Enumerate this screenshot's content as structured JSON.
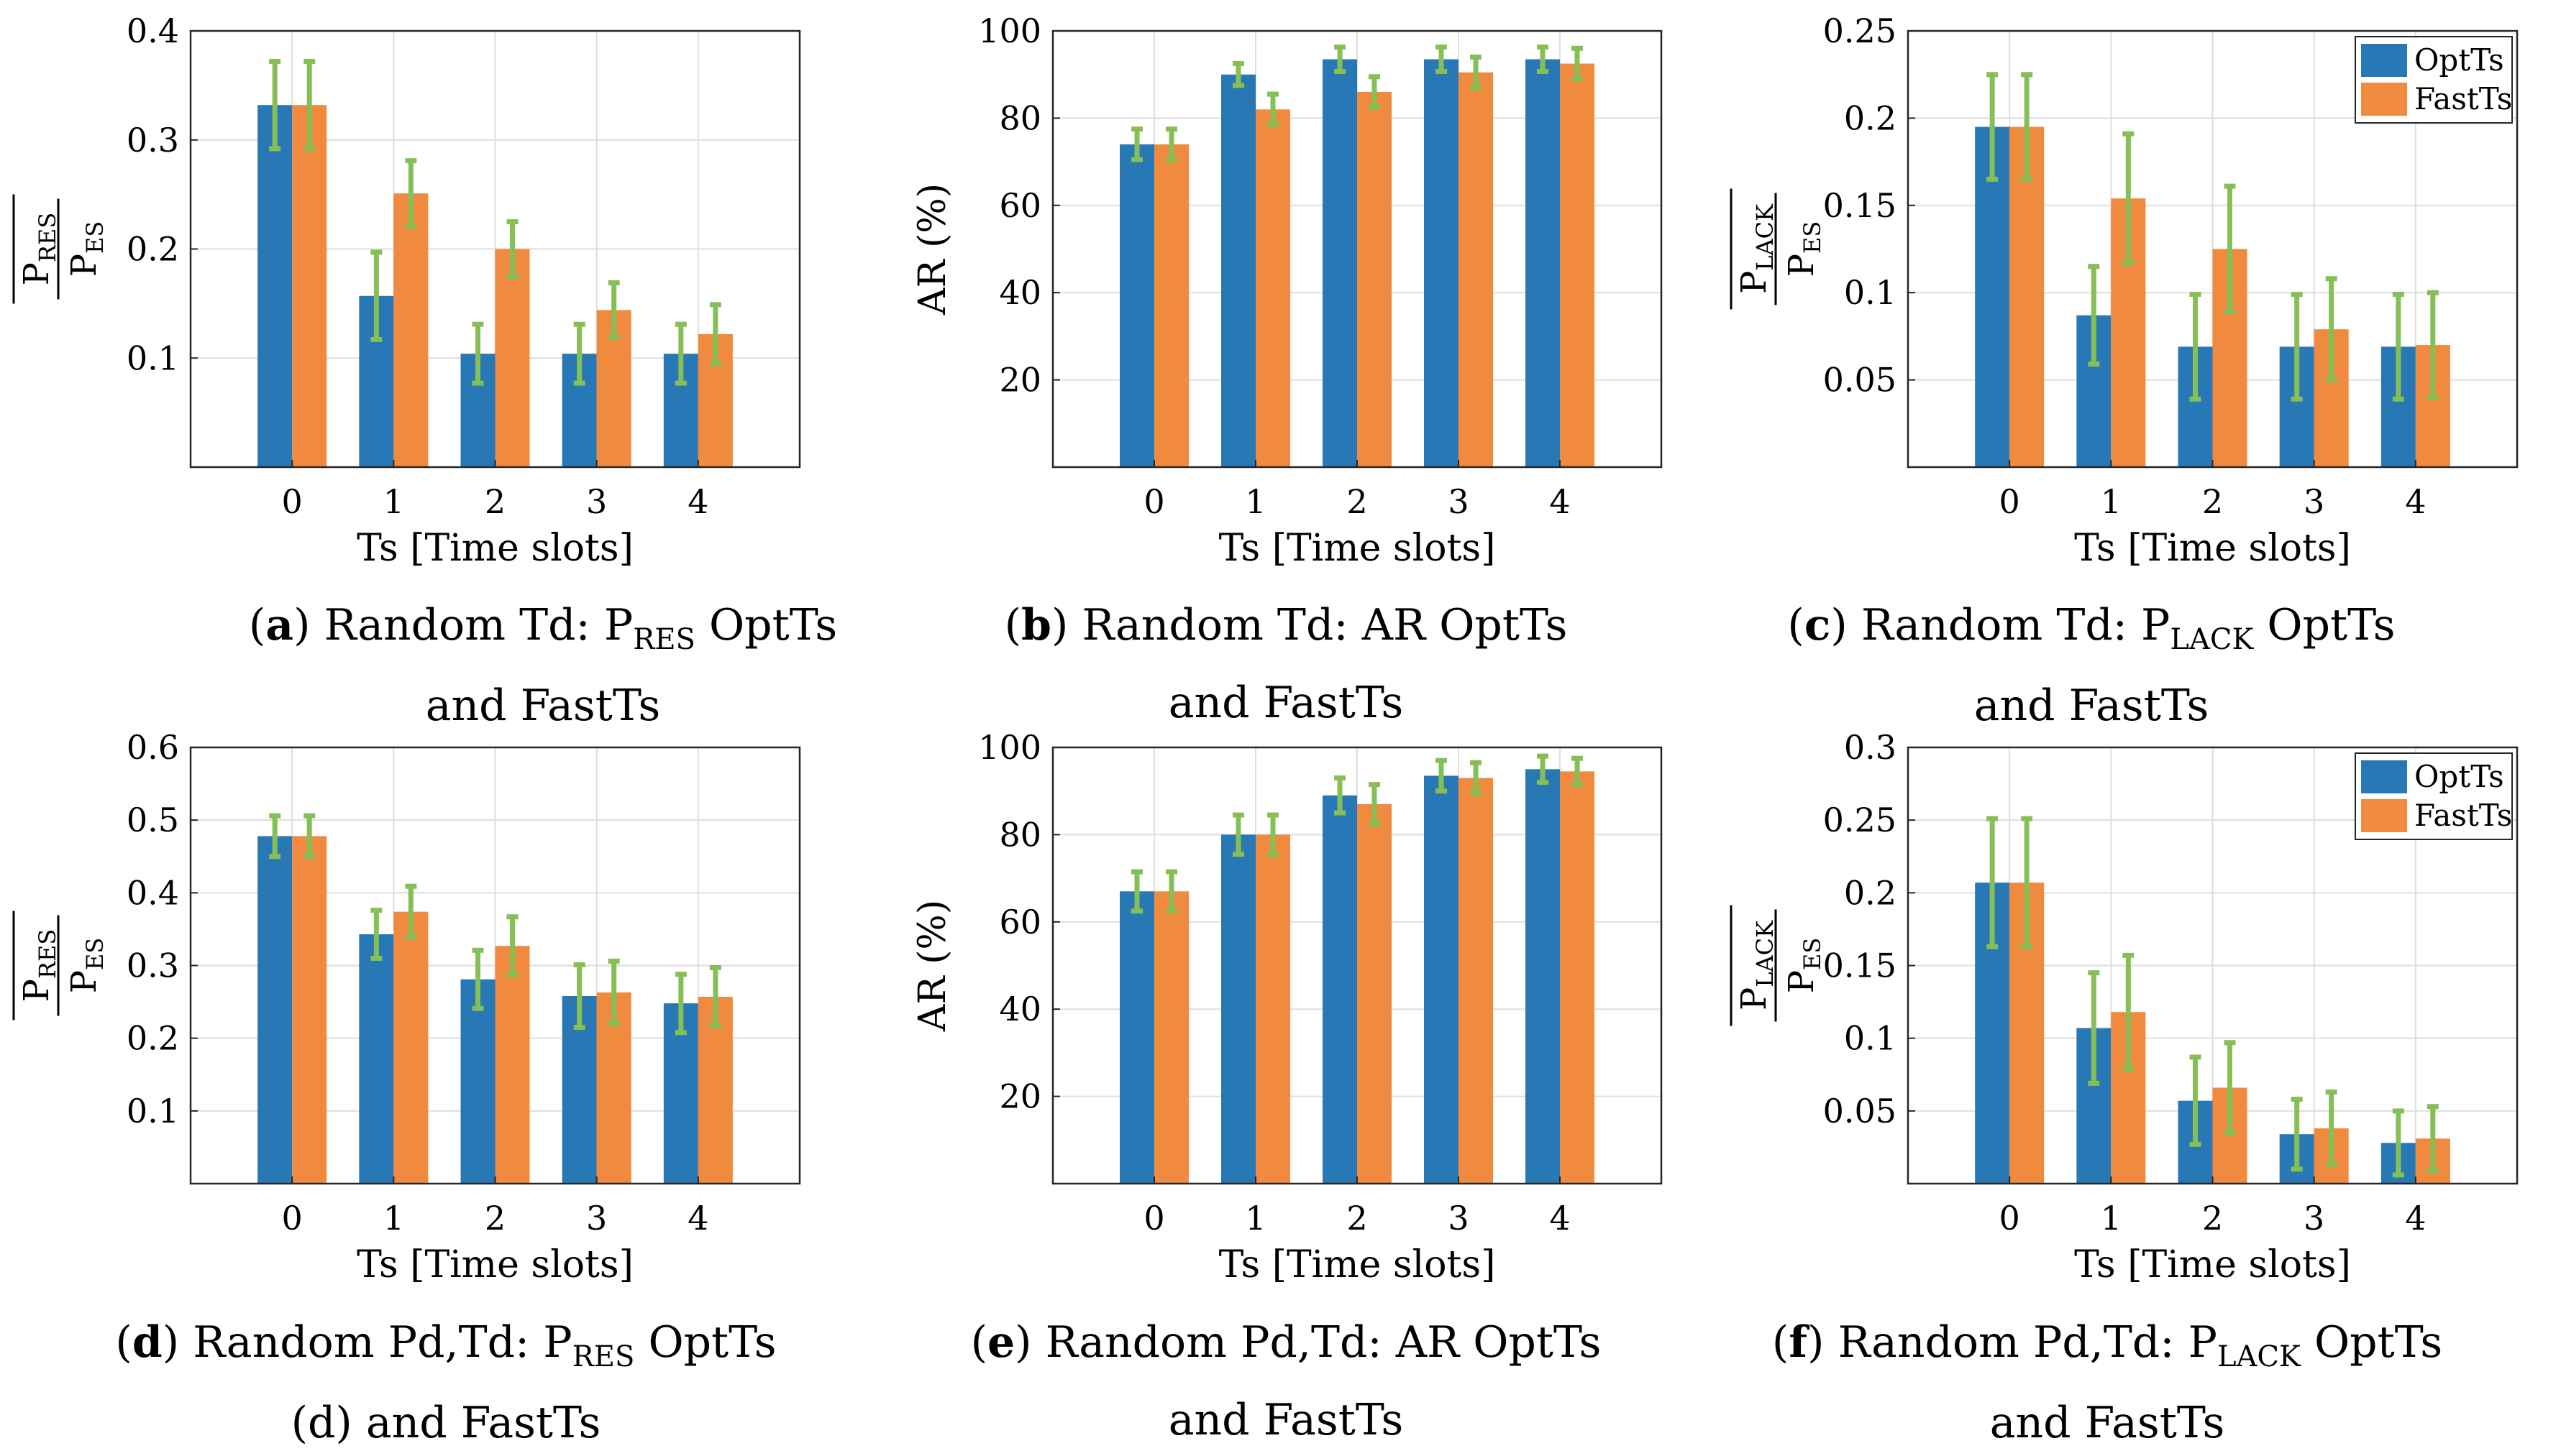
{
  "colors": {
    "opt": "#2878b6",
    "fast": "#f08a3e",
    "err": "#86bf56",
    "axis": "#262626",
    "grid": "#dedede"
  },
  "legend": {
    "opt": "OptTs",
    "fast": "FastTs"
  },
  "xlabel": "Ts [Time slots]",
  "captions": [
    {
      "letter": "a",
      "l1": "Random Td: P",
      "sub": "RES",
      "l1b": " OptTs",
      "l2": "and FastTs"
    },
    {
      "letter": "b",
      "l1": "Random Td: ",
      "sub": "",
      "l1b": "AR OptTs",
      "l2": "and FastTs"
    },
    {
      "letter": "c",
      "l1": "Random Td: P",
      "sub": "LACK",
      "l1b": " OptTs",
      "l2": "and FastTs"
    },
    {
      "letter": "d",
      "l1": "Random Pd,Td: P",
      "sub": "RES",
      "l1b": " OptTs",
      "l2": "(d) and FastTs"
    },
    {
      "letter": "e",
      "l1": "Random Pd,Td: ",
      "sub": "",
      "l1b": "AR OptTs",
      "l2": "and FastTs"
    },
    {
      "letter": "f",
      "l1": "Random Pd,Td: P",
      "sub": "LACK",
      "l1b": " OptTs",
      "l2": "and FastTs"
    }
  ],
  "chart_data": [
    {
      "type": "bar",
      "id": "a",
      "ylabel": "P_RES / P_ES",
      "ylim": [
        0,
        0.4
      ],
      "yticks": [
        "0.1",
        "0.2",
        "0.3",
        "0.4"
      ],
      "categories": [
        "0",
        "1",
        "2",
        "3",
        "4"
      ],
      "legend": false,
      "series": [
        {
          "name": "OptTs",
          "values": [
            0.332,
            0.157,
            0.104,
            0.104,
            0.104
          ],
          "err": [
            0.04,
            0.04,
            0.027,
            0.027,
            0.027
          ]
        },
        {
          "name": "FastTs",
          "values": [
            0.332,
            0.251,
            0.2,
            0.144,
            0.122
          ],
          "err": [
            0.04,
            0.03,
            0.025,
            0.025,
            0.027
          ]
        }
      ]
    },
    {
      "type": "bar",
      "id": "b",
      "ylabel": "AR (%)",
      "ylim": [
        0,
        100
      ],
      "yticks": [
        "20",
        "40",
        "60",
        "80",
        "100"
      ],
      "categories": [
        "0",
        "1",
        "2",
        "3",
        "4"
      ],
      "legend": false,
      "series": [
        {
          "name": "OptTs",
          "values": [
            74,
            90,
            93.5,
            93.5,
            93.5
          ],
          "err": [
            3.5,
            2.5,
            2.8,
            2.8,
            2.8
          ]
        },
        {
          "name": "FastTs",
          "values": [
            74,
            82,
            86,
            90.5,
            92.5
          ],
          "err": [
            3.5,
            3.5,
            3.5,
            3.5,
            3.5
          ]
        }
      ]
    },
    {
      "type": "bar",
      "id": "c",
      "ylabel": "P_LACK / P_ES",
      "ylim": [
        0,
        0.25
      ],
      "yticks": [
        "0.05",
        "0.1",
        "0.15",
        "0.2",
        "0.25"
      ],
      "categories": [
        "0",
        "1",
        "2",
        "3",
        "4"
      ],
      "legend": true,
      "series": [
        {
          "name": "OptTs",
          "values": [
            0.195,
            0.087,
            0.069,
            0.069,
            0.069
          ],
          "err": [
            0.03,
            0.028,
            0.03,
            0.03,
            0.03
          ]
        },
        {
          "name": "FastTs",
          "values": [
            0.195,
            0.154,
            0.125,
            0.079,
            0.07
          ],
          "err": [
            0.03,
            0.037,
            0.036,
            0.029,
            0.03
          ]
        }
      ]
    },
    {
      "type": "bar",
      "id": "d",
      "ylabel": "P_RES / P_ES",
      "ylim": [
        0,
        0.6
      ],
      "yticks": [
        "0.1",
        "0.2",
        "0.3",
        "0.4",
        "0.5",
        "0.6"
      ],
      "categories": [
        "0",
        "1",
        "2",
        "3",
        "4"
      ],
      "legend": false,
      "series": [
        {
          "name": "OptTs",
          "values": [
            0.478,
            0.343,
            0.281,
            0.258,
            0.248
          ],
          "err": [
            0.028,
            0.033,
            0.04,
            0.043,
            0.04
          ]
        },
        {
          "name": "FastTs",
          "values": [
            0.478,
            0.374,
            0.327,
            0.263,
            0.257
          ],
          "err": [
            0.028,
            0.035,
            0.04,
            0.043,
            0.04
          ]
        }
      ]
    },
    {
      "type": "bar",
      "id": "e",
      "ylabel": "AR (%)",
      "ylim": [
        0,
        100
      ],
      "yticks": [
        "20",
        "40",
        "60",
        "80",
        "100"
      ],
      "categories": [
        "0",
        "1",
        "2",
        "3",
        "4"
      ],
      "legend": false,
      "series": [
        {
          "name": "OptTs",
          "values": [
            67,
            80,
            89,
            93.5,
            95
          ],
          "err": [
            4.5,
            4.5,
            4,
            3.5,
            3
          ]
        },
        {
          "name": "FastTs",
          "values": [
            67,
            80,
            87,
            93,
            94.5
          ],
          "err": [
            4.5,
            4.5,
            4.5,
            3.5,
            3
          ]
        }
      ]
    },
    {
      "type": "bar",
      "id": "f",
      "ylabel": "P_LACK / P_ES",
      "ylim": [
        0,
        0.3
      ],
      "yticks": [
        "0.05",
        "0.1",
        "0.15",
        "0.2",
        "0.25",
        "0.3"
      ],
      "categories": [
        "0",
        "1",
        "2",
        "3",
        "4"
      ],
      "legend": true,
      "series": [
        {
          "name": "OptTs",
          "values": [
            0.207,
            0.107,
            0.057,
            0.034,
            0.028
          ],
          "err": [
            0.044,
            0.038,
            0.03,
            0.024,
            0.022
          ]
        },
        {
          "name": "FastTs",
          "values": [
            0.207,
            0.118,
            0.066,
            0.038,
            0.031
          ],
          "err": [
            0.044,
            0.039,
            0.031,
            0.025,
            0.022
          ]
        }
      ]
    }
  ]
}
